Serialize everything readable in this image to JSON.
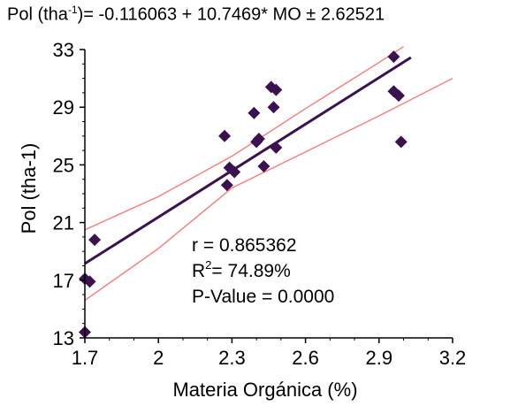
{
  "chart_data": {
    "type": "scatter",
    "title": {
      "prefix": "Pol (tha",
      "sup": "-1",
      "suffix": ")= -0.116063 + 10.7469* MO ± 2.62521"
    },
    "xlabel": "Materia Orgánica (%)",
    "ylabel": "Pol (tha-1)",
    "xlim": [
      1.7,
      3.2
    ],
    "ylim": [
      13,
      33
    ],
    "x_ticks": [
      "1.7",
      "2",
      "2.3",
      "2.6",
      "2.9",
      "3.2"
    ],
    "y_ticks": [
      "13",
      "17",
      "21",
      "25",
      "29",
      "33"
    ],
    "points": [
      {
        "x": 1.7,
        "y": 13.4
      },
      {
        "x": 1.7,
        "y": 17.1
      },
      {
        "x": 1.72,
        "y": 16.9
      },
      {
        "x": 1.74,
        "y": 19.8
      },
      {
        "x": 2.27,
        "y": 27.0
      },
      {
        "x": 2.28,
        "y": 23.6
      },
      {
        "x": 2.29,
        "y": 24.8
      },
      {
        "x": 2.31,
        "y": 24.5
      },
      {
        "x": 2.39,
        "y": 28.6
      },
      {
        "x": 2.4,
        "y": 26.6
      },
      {
        "x": 2.41,
        "y": 26.8
      },
      {
        "x": 2.43,
        "y": 24.9
      },
      {
        "x": 2.46,
        "y": 30.4
      },
      {
        "x": 2.48,
        "y": 30.2
      },
      {
        "x": 2.47,
        "y": 29.0
      },
      {
        "x": 2.48,
        "y": 26.2
      },
      {
        "x": 2.96,
        "y": 32.5
      },
      {
        "x": 2.96,
        "y": 30.1
      },
      {
        "x": 2.98,
        "y": 29.8
      },
      {
        "x": 2.99,
        "y": 26.6
      }
    ],
    "regression": {
      "intercept": -0.116063,
      "slope": 10.7469,
      "x_range": [
        1.7,
        3.03
      ]
    },
    "confidence_band": {
      "upper": [
        [
          1.7,
          20.5
        ],
        [
          2.0,
          22.8
        ],
        [
          2.3,
          25.6
        ],
        [
          2.6,
          28.9
        ],
        [
          2.9,
          32.1
        ],
        [
          3.0,
          33.2
        ]
      ],
      "lower": [
        [
          1.7,
          15.6
        ],
        [
          2.0,
          19.2
        ],
        [
          2.3,
          23.4
        ],
        [
          2.6,
          25.9
        ],
        [
          2.9,
          28.4
        ],
        [
          3.2,
          31.0
        ]
      ]
    },
    "stats": [
      {
        "label": "r = ",
        "value": "0.865362"
      },
      {
        "label": "R",
        "sup": "2",
        "label_rest": "= ",
        "value": "74.89%"
      },
      {
        "label": "P-Value = ",
        "value": "0.0000"
      }
    ],
    "colors": {
      "points": "#3b1250",
      "regression": "#3b1250",
      "band": "#ff7a7a",
      "axis": "#000000"
    }
  }
}
